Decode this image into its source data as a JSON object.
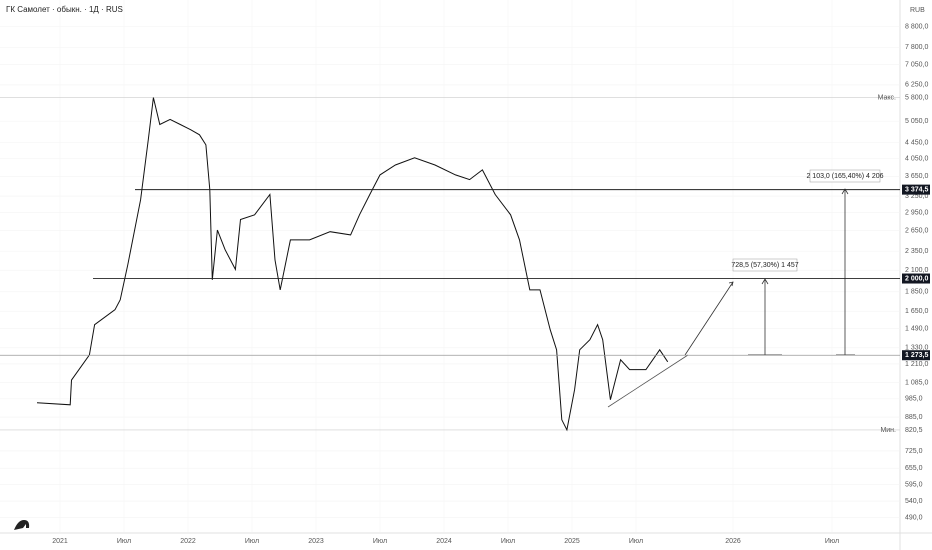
{
  "chart_data": {
    "type": "line",
    "title": "ГК Самолет · обыкн. · 1Д · RUS",
    "currency": "RUB",
    "log_scale": true,
    "color": "#111111",
    "grid": true,
    "ylim": [
      450,
      10300
    ],
    "yticks": [
      {
        "value": 8800,
        "label": "8 800,0"
      },
      {
        "value": 7800,
        "label": "7 800,0"
      },
      {
        "value": 7050,
        "label": "7 050,0"
      },
      {
        "value": 6250,
        "label": "6 250,0"
      },
      {
        "value": 5050,
        "label": "5 050,0"
      },
      {
        "value": 4450,
        "label": "4 450,0"
      },
      {
        "value": 4050,
        "label": "4 050,0"
      },
      {
        "value": 3650,
        "label": "3 650,0"
      },
      {
        "value": 3250,
        "label": "3 250,0"
      },
      {
        "value": 2950,
        "label": "2 950,0"
      },
      {
        "value": 2650,
        "label": "2 650,0"
      },
      {
        "value": 2350,
        "label": "2 350,0"
      },
      {
        "value": 2100,
        "label": "2 100,0"
      },
      {
        "value": 1850,
        "label": "1 850,0"
      },
      {
        "value": 1650,
        "label": "1 650,0"
      },
      {
        "value": 1490,
        "label": "1 490,0"
      },
      {
        "value": 1330,
        "label": "1 330,0"
      },
      {
        "value": 1210,
        "label": "1 210,0"
      },
      {
        "value": 1085,
        "label": "1 085,0"
      },
      {
        "value": 985,
        "label": "985,0"
      },
      {
        "value": 885,
        "label": "885,0"
      },
      {
        "value": 725,
        "label": "725,0"
      },
      {
        "value": 655,
        "label": "655,0"
      },
      {
        "value": 595,
        "label": "595,0"
      },
      {
        "value": 540,
        "label": "540,0"
      },
      {
        "value": 490,
        "label": "490,0"
      }
    ],
    "xticks": [
      {
        "value": 2021,
        "label": "2021"
      },
      {
        "value": 2021.5,
        "label": "Июл"
      },
      {
        "value": 2022,
        "label": "2022"
      },
      {
        "value": 2022.5,
        "label": "Июл"
      },
      {
        "value": 2023,
        "label": "2023"
      },
      {
        "value": 2023.5,
        "label": "Июл"
      },
      {
        "value": 2024,
        "label": "2024"
      },
      {
        "value": 2024.5,
        "label": "Июл"
      },
      {
        "value": 2025,
        "label": "2025"
      },
      {
        "value": 2025.5,
        "label": "Июл"
      },
      {
        "value": 2026,
        "label": "2026"
      },
      {
        "value": 2026.5,
        "label": "Июл"
      }
    ],
    "levels": [
      {
        "value": 3374.5,
        "label": "3 374,5"
      },
      {
        "value": 2000,
        "label": "2 000,0"
      },
      {
        "value": 1273.5,
        "label": "1 273,5"
      }
    ],
    "extremes": [
      {
        "value": 5800,
        "label": "5 800,0",
        "tag": "Макс."
      },
      {
        "value": 820.5,
        "label": "820,5",
        "tag": "Мин."
      }
    ],
    "annotations": [
      "728,5 (57,30%) 1 457",
      "2 103,0 (165,40%) 4 206"
    ],
    "x": [
      2020.82,
      2021.08,
      2021.09,
      2021.23,
      2021.27,
      2021.43,
      2021.47,
      2021.53,
      2021.63,
      2021.69,
      2021.73,
      2021.78,
      2021.86,
      2021.94,
      2022.02,
      2022.09,
      2022.14,
      2022.17,
      2022.19,
      2022.23,
      2022.29,
      2022.37,
      2022.41,
      2022.52,
      2022.64,
      2022.68,
      2022.72,
      2022.8,
      2022.95,
      2023.11,
      2023.27,
      2023.34,
      2023.42,
      2023.5,
      2023.62,
      2023.77,
      2023.93,
      2024.09,
      2024.2,
      2024.3,
      2024.4,
      2024.52,
      2024.59,
      2024.67,
      2024.75,
      2024.83,
      2024.88,
      2024.92,
      2024.96,
      2025.02,
      2025.06,
      2025.14,
      2025.2,
      2025.24,
      2025.3,
      2025.38,
      2025.45,
      2025.56,
      2025.63,
      2025.67
    ],
    "values": [
      963,
      951,
      1100,
      1276,
      1524,
      1665,
      1765,
      2170,
      3180,
      4530,
      5800,
      4950,
      5100,
      4950,
      4800,
      4660,
      4390,
      3375,
      1985,
      2660,
      2370,
      2110,
      2830,
      2910,
      3280,
      2230,
      1870,
      2510,
      2510,
      2635,
      2585,
      2910,
      3280,
      3680,
      3900,
      4070,
      3900,
      3680,
      3580,
      3790,
      3280,
      2910,
      2510,
      1870,
      1870,
      1480,
      1315,
      871,
      820.5,
      1040,
      1315,
      1395,
      1524,
      1395,
      980,
      1240,
      1170,
      1170,
      1315,
      1225
    ]
  }
}
